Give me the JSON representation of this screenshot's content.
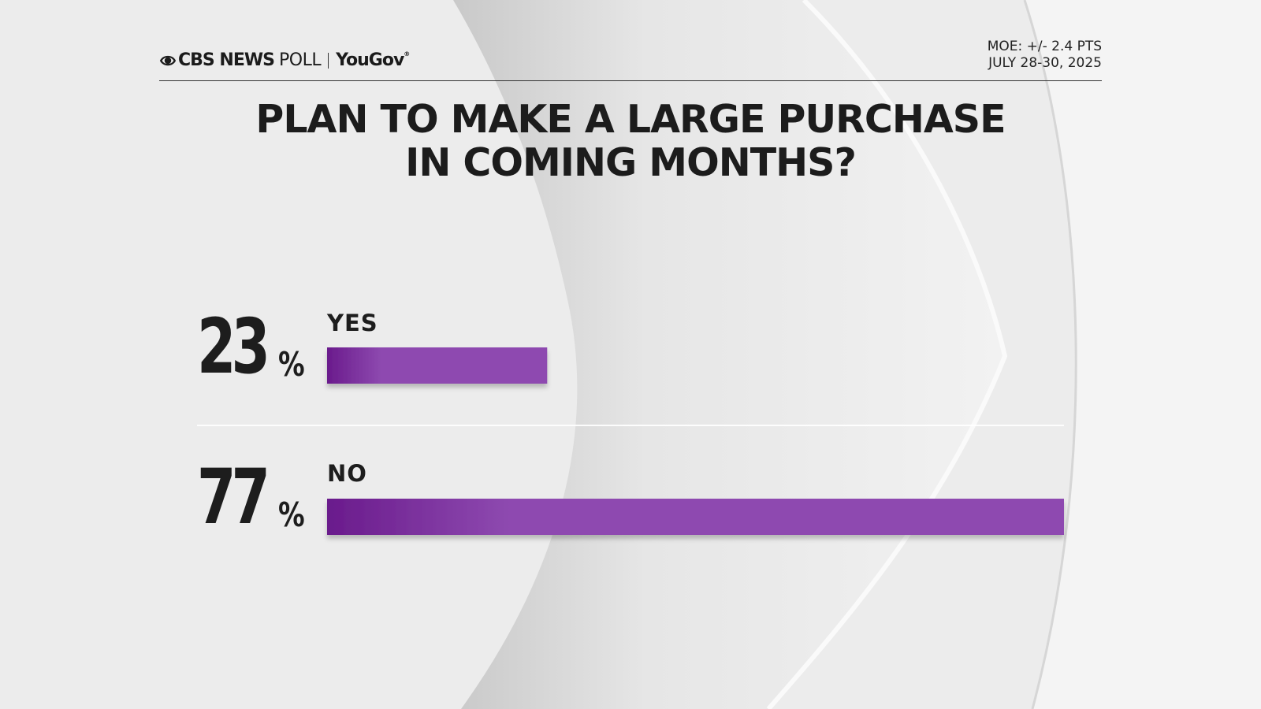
{
  "header": {
    "brand_cbs": "CBS NEWS",
    "brand_poll": "POLL",
    "brand_yougov": "YouGov",
    "moe": "MOE: +/- 2.4 PTS",
    "dates": "JULY 28-30, 2025"
  },
  "title": {
    "line1": "PLAN TO MAKE A LARGE PURCHASE",
    "line2": "IN COMING MONTHS?"
  },
  "colors": {
    "bar_start": "#6a1b8c",
    "bar_end": "#8e4ab0",
    "background": "#ececec"
  },
  "chart_data": {
    "type": "bar",
    "orientation": "horizontal",
    "title": "PLAN TO MAKE A LARGE PURCHASE IN COMING MONTHS?",
    "categories": [
      "YES",
      "NO"
    ],
    "values": [
      23,
      77
    ],
    "value_labels": [
      "23",
      "77"
    ],
    "unit": "%",
    "xlim": [
      0,
      77
    ],
    "grid": false
  }
}
